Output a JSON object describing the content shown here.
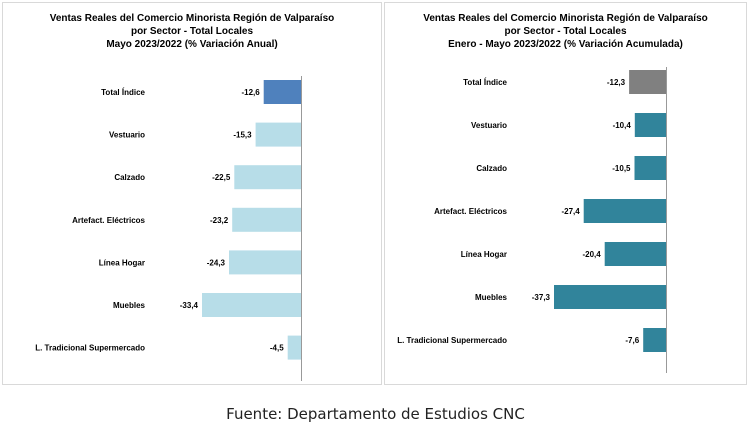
{
  "chart_data": [
    {
      "type": "bar",
      "orientation": "horizontal",
      "title_lines": [
        "Ventas Reales del Comercio Minorista Región de Valparaíso",
        "por Sector - Total Locales",
        "Mayo 2023/2022 (% Variación Anual)"
      ],
      "categories": [
        "Total Índice",
        "Vestuario",
        "Calzado",
        "Artefact. Eléctricos",
        "Línea Hogar",
        "Muebles",
        "L. Tradicional Supermercado"
      ],
      "values": [
        -12.6,
        -15.3,
        -22.5,
        -23.2,
        -24.3,
        -33.4,
        -4.5
      ],
      "value_labels": [
        "-12,6",
        "-15,3",
        "-22,5",
        "-23,2",
        "-24,3",
        "-33,4",
        "-4,5"
      ],
      "colors": [
        "#4f81bd",
        "#b7dde8",
        "#b7dde8",
        "#b7dde8",
        "#b7dde8",
        "#b7dde8",
        "#b7dde8"
      ],
      "xlim": [
        -33.4,
        0
      ],
      "grid": false,
      "legend": "none"
    },
    {
      "type": "bar",
      "orientation": "horizontal",
      "title_lines": [
        "Ventas Reales del Comercio Minorista Región de Valparaíso",
        "por Sector - Total Locales",
        "Enero - Mayo 2023/2022 (% Variación Acumulada)"
      ],
      "categories": [
        "Total Índice",
        "Vestuario",
        "Calzado",
        "Artefact. Eléctricos",
        "Línea Hogar",
        "Muebles",
        "L. Tradicional Supermercado"
      ],
      "values": [
        -12.3,
        -10.4,
        -10.5,
        -27.4,
        -20.4,
        -37.3,
        -7.6
      ],
      "value_labels": [
        "-12,3",
        "-10,4",
        "-10,5",
        "-27,4",
        "-20,4",
        "-37,3",
        "-7,6"
      ],
      "colors": [
        "#808080",
        "#31849b",
        "#31849b",
        "#31849b",
        "#31849b",
        "#31849b",
        "#31849b"
      ],
      "xlim": [
        -37.3,
        0
      ],
      "grid": false,
      "legend": "none"
    }
  ],
  "source": "Fuente: Departamento de Estudios CNC"
}
